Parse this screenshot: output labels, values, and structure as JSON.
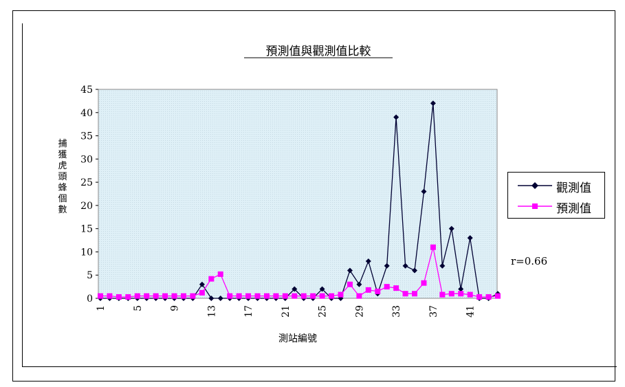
{
  "chart_data": {
    "type": "line",
    "title": "預測值與觀測值比較",
    "xlabel": "測站編號",
    "ylabel": "捕獲虎頭蜂個數",
    "annotation": "r=0.66",
    "ylim": [
      0,
      45
    ],
    "yticks": [
      0,
      5,
      10,
      15,
      20,
      25,
      30,
      35,
      40,
      45
    ],
    "x": [
      1,
      2,
      3,
      4,
      5,
      6,
      7,
      8,
      9,
      10,
      11,
      12,
      13,
      14,
      15,
      16,
      17,
      18,
      19,
      20,
      21,
      22,
      23,
      24,
      25,
      26,
      27,
      28,
      29,
      30,
      31,
      32,
      33,
      34,
      35,
      36,
      37,
      38,
      39,
      40,
      41,
      42,
      43,
      44
    ],
    "xtick_labels": [
      "1",
      "5",
      "9",
      "13",
      "17",
      "21",
      "25",
      "29",
      "33",
      "37",
      "41"
    ],
    "legend_position": "right",
    "plot_background": "#dff0f7",
    "series": [
      {
        "name": "觀測值",
        "color": "#000033",
        "marker": "diamond",
        "values": [
          0,
          0,
          0,
          0,
          0,
          0,
          0,
          0,
          0,
          0,
          0,
          3,
          0,
          0,
          0,
          0,
          0,
          0,
          0,
          0,
          0,
          2,
          0,
          0,
          2,
          0,
          0,
          6,
          3,
          8,
          1,
          7,
          39,
          7,
          6,
          23,
          42,
          7,
          15,
          2,
          13,
          0,
          0,
          1
        ]
      },
      {
        "name": "預測值",
        "color": "#ff00ff",
        "marker": "square",
        "values": [
          0.5,
          0.5,
          0.3,
          0.3,
          0.5,
          0.5,
          0.5,
          0.5,
          0.5,
          0.5,
          0.5,
          1.2,
          4.2,
          5.2,
          0.5,
          0.5,
          0.5,
          0.5,
          0.5,
          0.5,
          0.5,
          0.5,
          0.5,
          0.5,
          0.5,
          0.5,
          0.8,
          3,
          0.5,
          1.8,
          1.5,
          2.5,
          2.2,
          1,
          1,
          3.3,
          11,
          0.8,
          1,
          1,
          0.8,
          0.3,
          0.3,
          0.5
        ]
      }
    ]
  }
}
